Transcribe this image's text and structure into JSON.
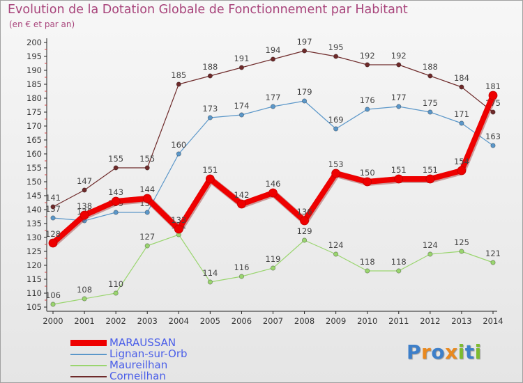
{
  "header": {
    "title": "Evolution de la Dotation Globale de Fonctionnement par Habitant",
    "subtitle": "(en € et par an)"
  },
  "logo": {
    "text": "Proxiti",
    "letters": [
      {
        "ch": "P",
        "color": "#3d7fc9"
      },
      {
        "ch": "r",
        "color": "#e9891f"
      },
      {
        "ch": "o",
        "color": "#3d7fc9"
      },
      {
        "ch": "x",
        "color": "#e9891f"
      },
      {
        "ch": "i",
        "color": "#7dbb2f"
      },
      {
        "ch": "t",
        "color": "#3d7fc9"
      },
      {
        "ch": "i",
        "color": "#7dbb2f"
      }
    ]
  },
  "chart_data": {
    "type": "line",
    "title": "Evolution de la Dotation Globale de Fonctionnement par Habitant",
    "subtitle": "(en € et par an)",
    "x": [
      "2000",
      "2001",
      "2002",
      "2003",
      "2004",
      "2005",
      "2006",
      "2007",
      "2008",
      "2009",
      "2010",
      "2011",
      "2012",
      "2013",
      "2014"
    ],
    "ylim": [
      105,
      200
    ],
    "yticks": [
      105,
      110,
      115,
      120,
      125,
      130,
      135,
      140,
      145,
      150,
      155,
      160,
      165,
      170,
      175,
      180,
      185,
      190,
      195,
      200
    ],
    "grid": false,
    "legend_position": "bottom-left",
    "series": [
      {
        "name": "MARAUSSAN",
        "color": "#ee0000",
        "width": "thick",
        "values": [
          128,
          138,
          143,
          144,
          133,
          151,
          142,
          146,
          136,
          153,
          150,
          151,
          151,
          154,
          181
        ]
      },
      {
        "name": "Lignan-sur-Orb",
        "color": "#5b97c9",
        "width": "thin",
        "values": [
          137,
          136,
          139,
          139,
          160,
          173,
          174,
          177,
          179,
          169,
          176,
          177,
          175,
          171,
          163
        ]
      },
      {
        "name": "Maureilhan",
        "color": "#9ad56f",
        "width": "thin",
        "values": [
          106,
          108,
          110,
          127,
          131,
          114,
          116,
          119,
          129,
          124,
          118,
          118,
          124,
          125,
          121
        ]
      },
      {
        "name": "Corneilhan",
        "color": "#6e2a2a",
        "width": "thin",
        "values": [
          141,
          147,
          155,
          155,
          185,
          188,
          191,
          194,
          197,
          195,
          192,
          192,
          188,
          184,
          175
        ]
      }
    ]
  }
}
